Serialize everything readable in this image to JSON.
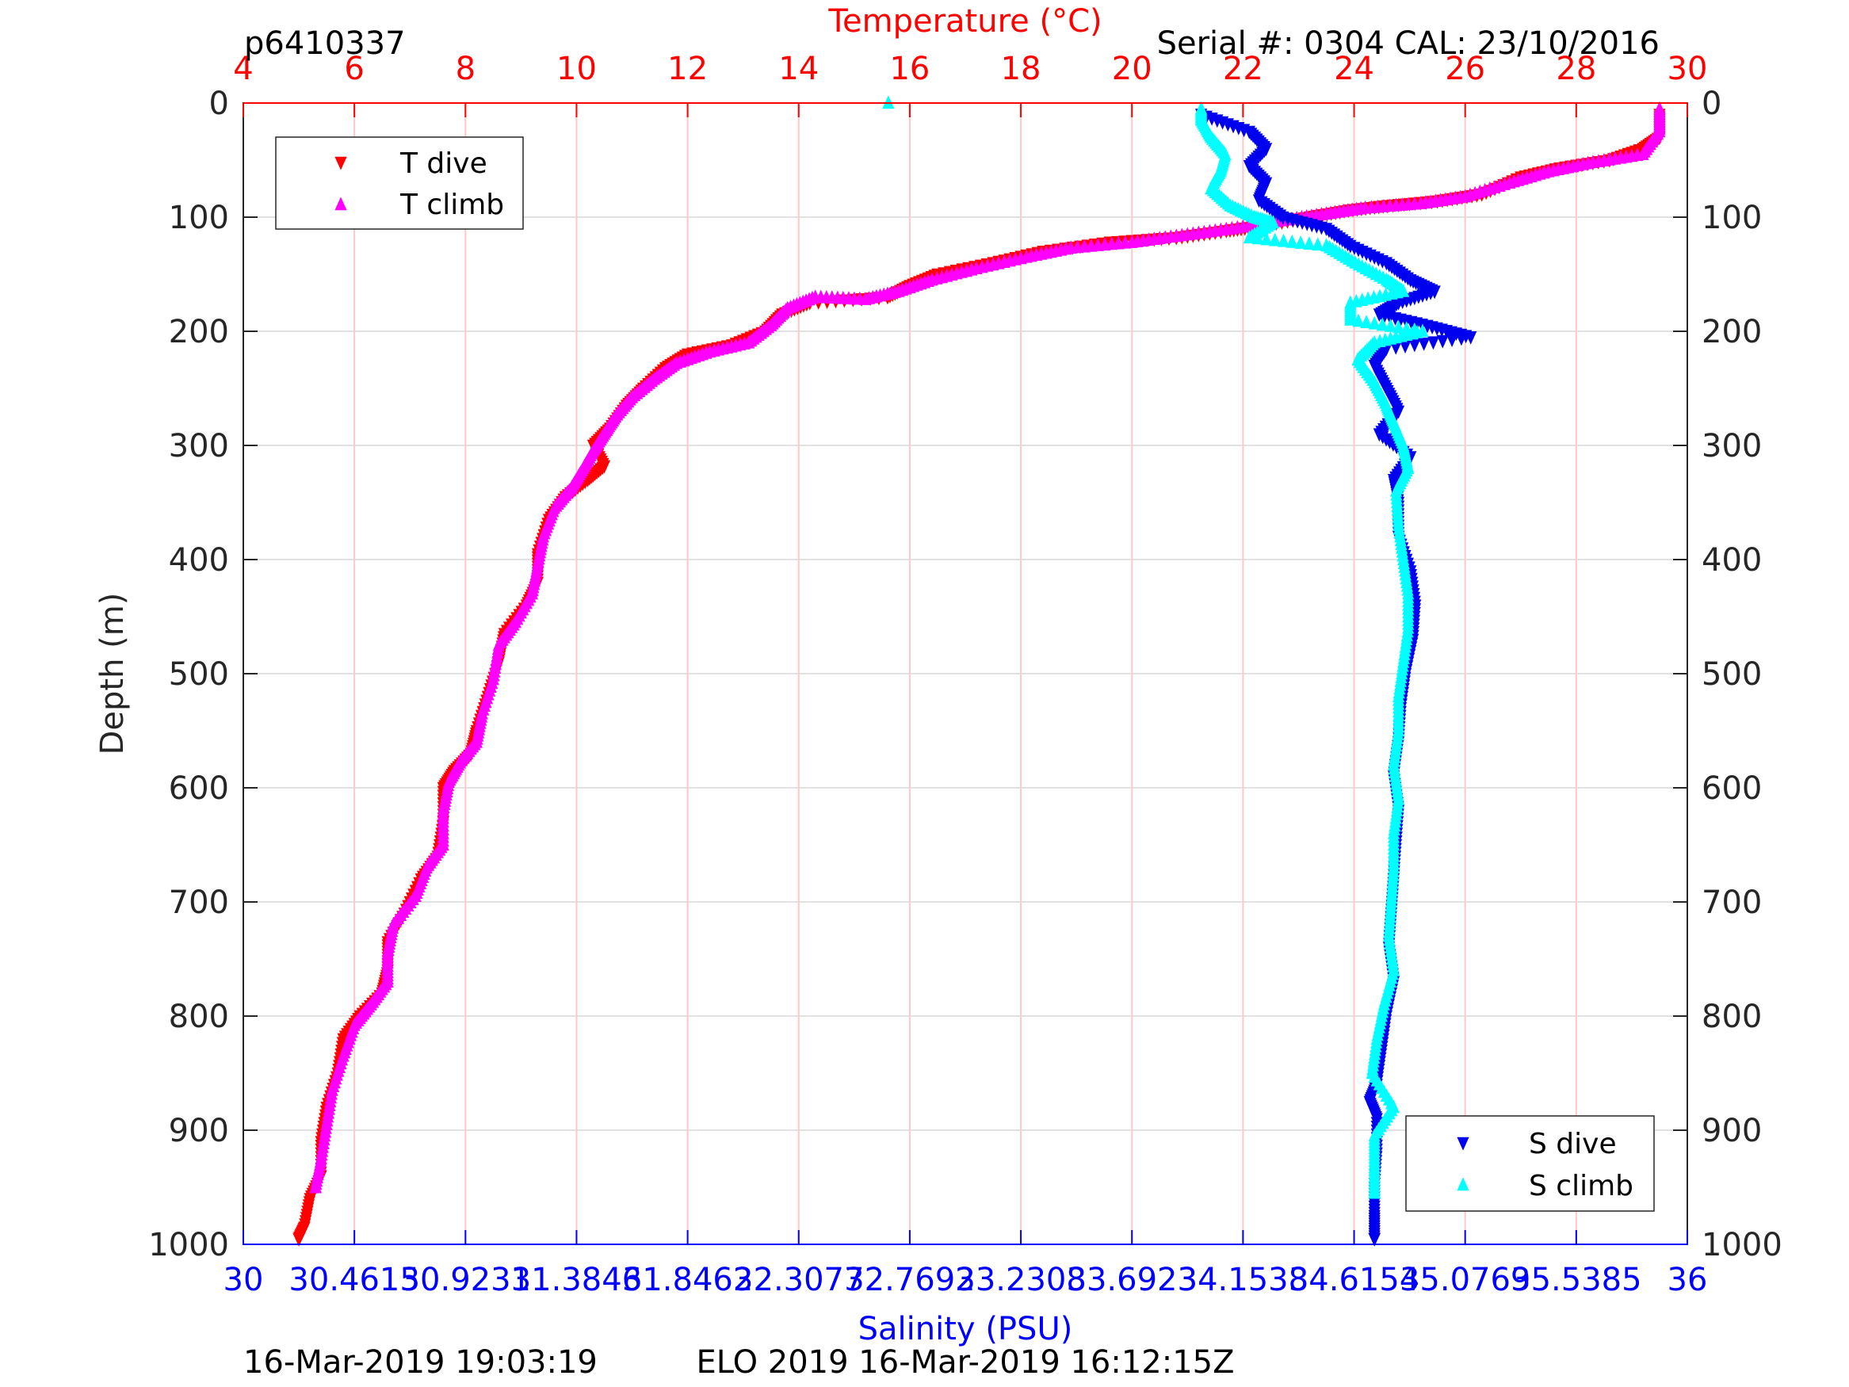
{
  "header": {
    "profile_id": "p6410337",
    "serial": "Serial #: 0304  CAL: 23/10/2016"
  },
  "footer": {
    "left": "16-Mar-2019 19:03:19",
    "center": "ELO 2019 16-Mar-2019 16:12:15Z"
  },
  "colors": {
    "t_dive": "#ff0000",
    "t_climb": "#ff00ff",
    "s_dive": "#0000ee",
    "s_climb": "#00ffff",
    "temp_axis": "#ff0000",
    "sal_axis": "#0000ff",
    "grid_temp": "#ffc8c8",
    "grid_depth": "#e1e1e1"
  },
  "chart_data": {
    "type": "scatter",
    "grid": true,
    "depth_axis": {
      "label": "Depth (m)",
      "range": [
        0,
        1000
      ],
      "reversed": true,
      "ticks": [
        0,
        100,
        200,
        300,
        400,
        500,
        600,
        700,
        800,
        900,
        1000
      ]
    },
    "temperature_axis": {
      "label": "Temperature (°C)",
      "position": "top",
      "range": [
        4,
        30
      ],
      "ticks": [
        4,
        6,
        8,
        10,
        12,
        14,
        16,
        18,
        20,
        22,
        24,
        26,
        28,
        30
      ]
    },
    "salinity_axis": {
      "label": "Salinity (PSU)",
      "position": "bottom",
      "range": [
        30,
        36
      ],
      "ticks": [
        30,
        30.4615,
        30.9231,
        31.3846,
        31.8462,
        32.3077,
        32.7692,
        33.2308,
        33.6923,
        34.1538,
        34.6154,
        35.0769,
        35.5385,
        36
      ],
      "tick_labels": [
        "30",
        "30.4615",
        "30.9231",
        "31.3846",
        "31.8462",
        "32.3077",
        "32.7692",
        "33.2308",
        "33.6923",
        "34.1538",
        "34.6154",
        "35.0769",
        "35.5385",
        "36"
      ]
    },
    "legend_temperature": {
      "position": "top-left",
      "entries": [
        "T dive",
        "T climb"
      ]
    },
    "legend_salinity": {
      "position": "bottom-right",
      "entries": [
        "S dive",
        "S climb"
      ]
    },
    "series": [
      {
        "name": "T dive",
        "axis": "temperature",
        "marker": "triangle-down",
        "points": [
          [
            29.5,
            10
          ],
          [
            29.5,
            30
          ],
          [
            29.2,
            40
          ],
          [
            28.6,
            50
          ],
          [
            27.7,
            57
          ],
          [
            27,
            65
          ],
          [
            26.3,
            80
          ],
          [
            25.5,
            86
          ],
          [
            24.6,
            90
          ],
          [
            23.9,
            94
          ],
          [
            23.2,
            100
          ],
          [
            22.3,
            108
          ],
          [
            21.7,
            112
          ],
          [
            20.8,
            118
          ],
          [
            19.6,
            122
          ],
          [
            18.4,
            130
          ],
          [
            17.5,
            140
          ],
          [
            16.5,
            150
          ],
          [
            16,
            160
          ],
          [
            15.6,
            170
          ],
          [
            14.2,
            175
          ],
          [
            13.7,
            185
          ],
          [
            13.4,
            200
          ],
          [
            12.8,
            212
          ],
          [
            12,
            220
          ],
          [
            11.6,
            232
          ],
          [
            11.2,
            250
          ],
          [
            10.9,
            265
          ],
          [
            10.6,
            285
          ],
          [
            10.3,
            300
          ],
          [
            10.5,
            318
          ],
          [
            10.2,
            330
          ],
          [
            9.8,
            345
          ],
          [
            9.5,
            365
          ],
          [
            9.3,
            395
          ],
          [
            9.3,
            420
          ],
          [
            9.1,
            440
          ],
          [
            8.7,
            465
          ],
          [
            8.6,
            490
          ],
          [
            8.4,
            520
          ],
          [
            8.2,
            550
          ],
          [
            8.1,
            570
          ],
          [
            7.8,
            585
          ],
          [
            7.6,
            600
          ],
          [
            7.6,
            630
          ],
          [
            7.5,
            660
          ],
          [
            7.2,
            680
          ],
          [
            6.9,
            710
          ],
          [
            6.6,
            735
          ],
          [
            6.6,
            760
          ],
          [
            6.5,
            780
          ],
          [
            6.1,
            800
          ],
          [
            5.8,
            820
          ],
          [
            5.7,
            850
          ],
          [
            5.5,
            880
          ],
          [
            5.4,
            910
          ],
          [
            5.4,
            940
          ],
          [
            5.2,
            960
          ],
          [
            5.1,
            985
          ],
          [
            5,
            995
          ]
        ]
      },
      {
        "name": "T climb",
        "axis": "temperature",
        "marker": "triangle-up",
        "points": [
          [
            29.5,
            5
          ],
          [
            29.5,
            25
          ],
          [
            29.2,
            45
          ],
          [
            28.3,
            52
          ],
          [
            27.5,
            60
          ],
          [
            26.8,
            70
          ],
          [
            26,
            82
          ],
          [
            25.2,
            88
          ],
          [
            24.2,
            92
          ],
          [
            23.5,
            97
          ],
          [
            22.7,
            103
          ],
          [
            21.8,
            110
          ],
          [
            20.9,
            116
          ],
          [
            20,
            122
          ],
          [
            18.9,
            127
          ],
          [
            18.1,
            135
          ],
          [
            17.2,
            145
          ],
          [
            16.4,
            155
          ],
          [
            15.8,
            165
          ],
          [
            15.2,
            172
          ],
          [
            14.3,
            170
          ],
          [
            13.8,
            180
          ],
          [
            13.5,
            195
          ],
          [
            13.1,
            210
          ],
          [
            12.4,
            218
          ],
          [
            11.8,
            228
          ],
          [
            11.4,
            242
          ],
          [
            11,
            258
          ],
          [
            10.7,
            275
          ],
          [
            10.5,
            290
          ],
          [
            10.3,
            305
          ],
          [
            10.1,
            322
          ],
          [
            9.9,
            338
          ],
          [
            9.6,
            355
          ],
          [
            9.4,
            380
          ],
          [
            9.3,
            405
          ],
          [
            9.2,
            430
          ],
          [
            8.9,
            455
          ],
          [
            8.6,
            475
          ],
          [
            8.5,
            505
          ],
          [
            8.3,
            535
          ],
          [
            8.2,
            560
          ],
          [
            7.9,
            578
          ],
          [
            7.7,
            595
          ],
          [
            7.6,
            620
          ],
          [
            7.6,
            650
          ],
          [
            7.3,
            670
          ],
          [
            7.1,
            695
          ],
          [
            6.7,
            720
          ],
          [
            6.6,
            745
          ],
          [
            6.6,
            770
          ],
          [
            6.3,
            790
          ],
          [
            6,
            808
          ],
          [
            5.8,
            835
          ],
          [
            5.6,
            865
          ],
          [
            5.5,
            895
          ],
          [
            5.4,
            925
          ],
          [
            5.3,
            950
          ]
        ]
      },
      {
        "name": "S dive",
        "axis": "salinity",
        "marker": "triangle-down",
        "points": [
          [
            33.98,
            10
          ],
          [
            34.18,
            25
          ],
          [
            34.25,
            40
          ],
          [
            34.18,
            55
          ],
          [
            34.25,
            70
          ],
          [
            34.22,
            85
          ],
          [
            34.32,
            100
          ],
          [
            34.5,
            110
          ],
          [
            34.6,
            125
          ],
          [
            34.75,
            140
          ],
          [
            34.85,
            155
          ],
          [
            34.95,
            165
          ],
          [
            34.8,
            175
          ],
          [
            34.72,
            185
          ],
          [
            34.92,
            195
          ],
          [
            35.1,
            205
          ],
          [
            34.75,
            215
          ],
          [
            34.7,
            230
          ],
          [
            34.75,
            250
          ],
          [
            34.8,
            270
          ],
          [
            34.72,
            290
          ],
          [
            34.85,
            310
          ],
          [
            34.78,
            330
          ],
          [
            34.8,
            350
          ],
          [
            34.8,
            380
          ],
          [
            34.85,
            410
          ],
          [
            34.87,
            440
          ],
          [
            34.86,
            470
          ],
          [
            34.83,
            500
          ],
          [
            34.81,
            530
          ],
          [
            34.8,
            560
          ],
          [
            34.78,
            590
          ],
          [
            34.8,
            620
          ],
          [
            34.79,
            650
          ],
          [
            34.78,
            680
          ],
          [
            34.77,
            710
          ],
          [
            34.76,
            740
          ],
          [
            34.78,
            770
          ],
          [
            34.75,
            800
          ],
          [
            34.73,
            830
          ],
          [
            34.71,
            860
          ],
          [
            34.68,
            875
          ],
          [
            34.71,
            890
          ],
          [
            34.71,
            920
          ],
          [
            34.7,
            950
          ],
          [
            34.7,
            975
          ],
          [
            34.7,
            995
          ]
        ]
      },
      {
        "name": "S climb",
        "axis": "salinity",
        "marker": "triangle-up",
        "points": [
          [
            32.68,
            0
          ],
          [
            33.98,
            5
          ],
          [
            33.98,
            15
          ],
          [
            34.02,
            30
          ],
          [
            34.08,
            45
          ],
          [
            34.06,
            60
          ],
          [
            34.02,
            75
          ],
          [
            34.1,
            90
          ],
          [
            34.2,
            100
          ],
          [
            34.28,
            105
          ],
          [
            34.18,
            118
          ],
          [
            34.5,
            125
          ],
          [
            34.62,
            140
          ],
          [
            34.75,
            155
          ],
          [
            34.82,
            165
          ],
          [
            34.6,
            175
          ],
          [
            34.6,
            190
          ],
          [
            34.9,
            200
          ],
          [
            34.7,
            210
          ],
          [
            34.63,
            225
          ],
          [
            34.7,
            245
          ],
          [
            34.75,
            265
          ],
          [
            34.78,
            280
          ],
          [
            34.82,
            300
          ],
          [
            34.84,
            320
          ],
          [
            34.79,
            340
          ],
          [
            34.8,
            370
          ],
          [
            34.82,
            400
          ],
          [
            34.84,
            430
          ],
          [
            34.84,
            460
          ],
          [
            34.82,
            490
          ],
          [
            34.8,
            520
          ],
          [
            34.8,
            550
          ],
          [
            34.78,
            580
          ],
          [
            34.8,
            610
          ],
          [
            34.78,
            640
          ],
          [
            34.78,
            670
          ],
          [
            34.77,
            700
          ],
          [
            34.76,
            730
          ],
          [
            34.78,
            760
          ],
          [
            34.74,
            790
          ],
          [
            34.71,
            820
          ],
          [
            34.69,
            850
          ],
          [
            34.78,
            880
          ],
          [
            34.7,
            905
          ],
          [
            34.7,
            930
          ],
          [
            34.7,
            955
          ]
        ]
      }
    ]
  }
}
